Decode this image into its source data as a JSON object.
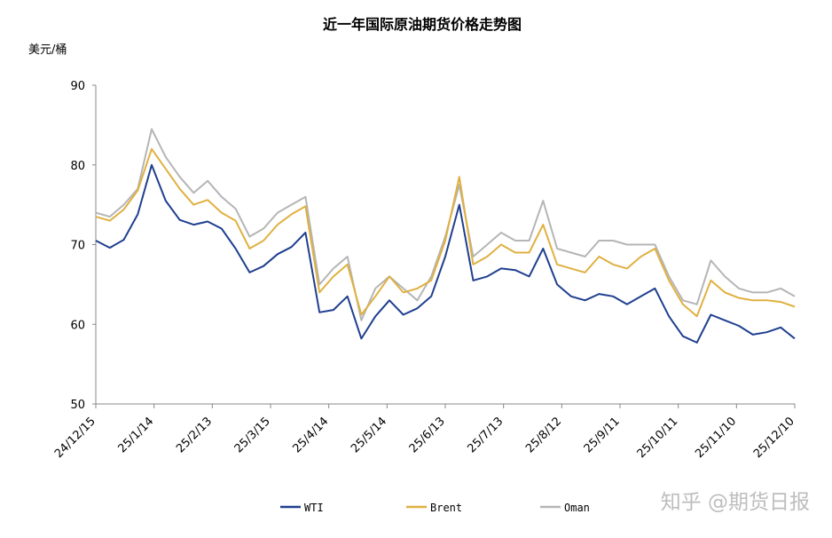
{
  "chart_data": {
    "type": "line",
    "title": "近一年国际原油期货价格走势图",
    "ylabel": "美元/桶",
    "xlabel": "",
    "ylim": [
      50,
      90
    ],
    "yticks": [
      50,
      60,
      70,
      80,
      90
    ],
    "grid": false,
    "legend_position": "bottom",
    "x_ticks": [
      "24/12/15",
      "25/1/14",
      "25/2/13",
      "25/3/15",
      "25/4/14",
      "25/5/14",
      "25/6/13",
      "25/7/13",
      "25/8/12",
      "25/9/11",
      "25/10/11",
      "25/11/10",
      "25/12/10"
    ],
    "x": [
      "24/12/15",
      "24/12/22",
      "24/12/29",
      "25/1/5",
      "25/1/14",
      "25/1/21",
      "25/1/28",
      "25/2/4",
      "25/2/13",
      "25/2/20",
      "25/2/27",
      "25/3/6",
      "25/3/15",
      "25/3/22",
      "25/3/29",
      "25/4/3",
      "25/4/9",
      "25/4/14",
      "25/4/22",
      "25/4/29",
      "25/5/6",
      "25/5/14",
      "25/5/21",
      "25/5/28",
      "25/6/4",
      "25/6/10",
      "25/6/13",
      "25/6/20",
      "25/6/27",
      "25/7/4",
      "25/7/13",
      "25/7/20",
      "25/7/27",
      "25/8/3",
      "25/8/12",
      "25/8/19",
      "25/8/26",
      "25/9/2",
      "25/9/11",
      "25/9/18",
      "25/9/25",
      "25/10/2",
      "25/10/11",
      "25/10/18",
      "25/10/25",
      "25/11/1",
      "25/11/10",
      "25/11/17",
      "25/11/24",
      "25/12/1",
      "25/12/10"
    ],
    "series": [
      {
        "name": "WTI",
        "color": "#1f3f8f",
        "values": [
          70.5,
          69.6,
          70.6,
          73.8,
          80.0,
          75.5,
          73.1,
          72.5,
          72.9,
          72.0,
          69.5,
          66.5,
          67.3,
          68.8,
          69.7,
          71.5,
          61.5,
          61.8,
          63.5,
          58.2,
          61.0,
          63.0,
          61.2,
          62.0,
          63.5,
          68.5,
          75.0,
          65.5,
          66.0,
          67.0,
          66.8,
          66.0,
          69.5,
          65.0,
          63.5,
          63.0,
          63.8,
          63.5,
          62.5,
          63.5,
          64.5,
          61.0,
          58.5,
          57.7,
          61.2,
          60.5,
          59.8,
          58.7,
          59.0,
          59.6,
          58.2
        ]
      },
      {
        "name": "Brent",
        "color": "#e0b040",
        "values": [
          73.5,
          73.0,
          74.4,
          76.8,
          82.0,
          79.5,
          77.0,
          75.0,
          75.6,
          74.0,
          73.0,
          69.5,
          70.5,
          72.5,
          73.8,
          74.8,
          64.0,
          66.0,
          67.5,
          61.2,
          63.5,
          66.0,
          64.0,
          64.5,
          65.5,
          70.5,
          78.5,
          67.5,
          68.5,
          70.0,
          69.0,
          69.0,
          72.5,
          67.5,
          67.0,
          66.5,
          68.5,
          67.5,
          67.0,
          68.5,
          69.5,
          65.5,
          62.5,
          61.0,
          65.5,
          64.0,
          63.3,
          63.0,
          63.0,
          62.8,
          62.2
        ]
      },
      {
        "name": "Oman",
        "color": "#b5b5b5",
        "values": [
          74.0,
          73.5,
          75.0,
          77.0,
          84.5,
          81.0,
          78.5,
          76.5,
          78.0,
          76.0,
          74.5,
          71.0,
          72.0,
          74.0,
          75.0,
          76.0,
          65.0,
          67.0,
          68.5,
          60.5,
          64.5,
          66.0,
          64.5,
          63.0,
          66.0,
          71.0,
          77.5,
          68.5,
          70.0,
          71.5,
          70.5,
          70.5,
          75.5,
          69.5,
          69.0,
          68.5,
          70.5,
          70.5,
          70.0,
          70.0,
          70.0,
          66.0,
          63.0,
          62.5,
          68.0,
          66.0,
          64.5,
          64.0,
          64.0,
          64.5,
          63.5
        ]
      }
    ]
  },
  "watermark": "知乎 @期货日报"
}
